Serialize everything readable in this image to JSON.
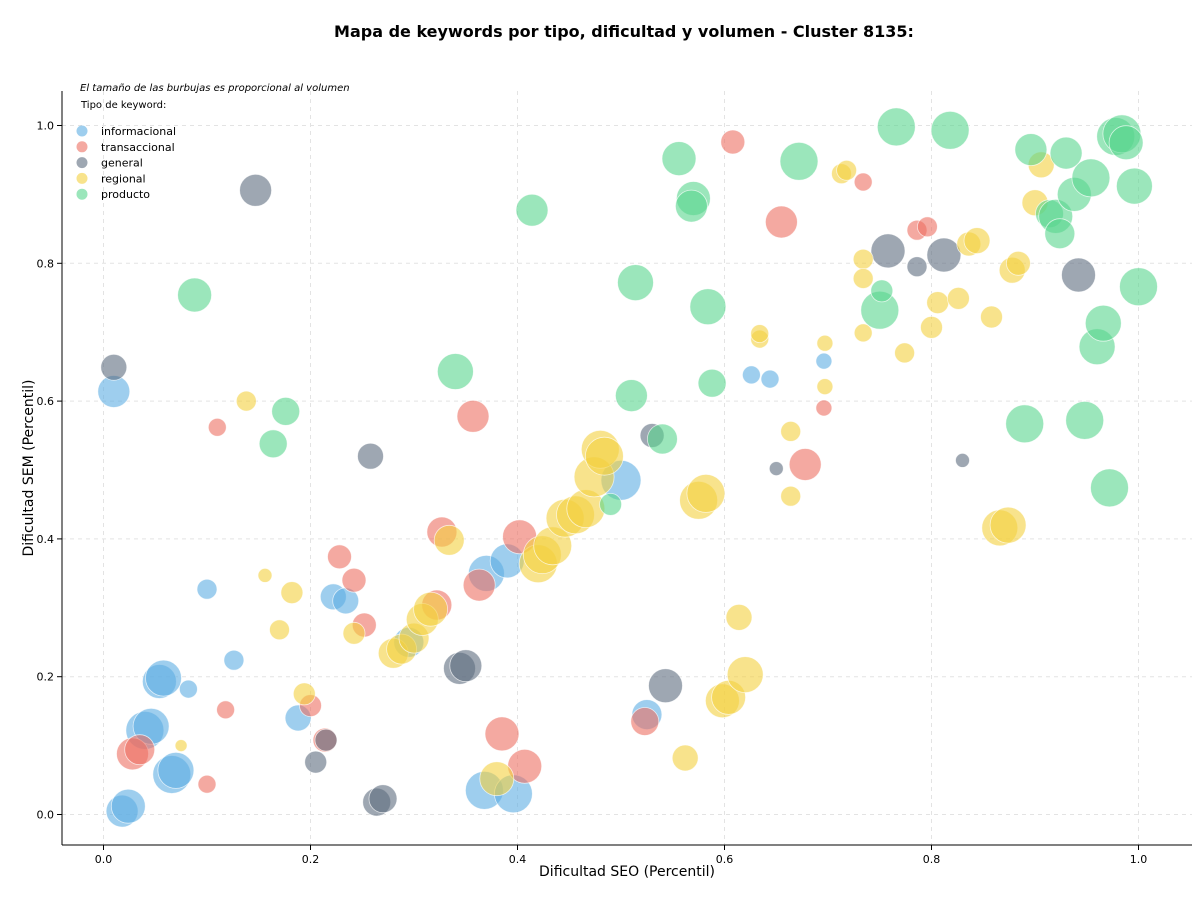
{
  "chart_data": {
    "type": "scatter",
    "title": "Mapa de keywords por tipo, dificultad y volumen - Cluster 8135:",
    "xlabel": "Dificultad SEO (Percentil)",
    "ylabel": "Dificultad SEM (Percentil)",
    "xlim": [
      -0.05,
      1.05
    ],
    "ylim": [
      -0.045,
      1.05
    ],
    "xticks": [
      "0.0",
      "0.2",
      "0.4",
      "0.6",
      "0.8",
      "1.0"
    ],
    "yticks": [
      "0.0",
      "0.2",
      "0.4",
      "0.6",
      "0.8",
      "1.0"
    ],
    "grid": true,
    "annotation": "El tamaño de las burbujas es proporcional al volumen",
    "legend": {
      "title": "Tipo de keyword:",
      "placement": "top-left"
    },
    "series": [
      {
        "name": "informacional",
        "color": "#5dade2",
        "points": [
          [
            0.01,
            0.614,
            16
          ],
          [
            0.018,
            0.005,
            16
          ],
          [
            0.024,
            0.012,
            17
          ],
          [
            0.04,
            0.122,
            19
          ],
          [
            0.046,
            0.128,
            18
          ],
          [
            0.054,
            0.193,
            17
          ],
          [
            0.058,
            0.198,
            18
          ],
          [
            0.066,
            0.058,
            19
          ],
          [
            0.07,
            0.064,
            18
          ],
          [
            0.082,
            0.182,
            9
          ],
          [
            0.1,
            0.327,
            10
          ],
          [
            0.126,
            0.224,
            10
          ],
          [
            0.188,
            0.14,
            13
          ],
          [
            0.222,
            0.316,
            13
          ],
          [
            0.234,
            0.31,
            13
          ],
          [
            0.295,
            0.25,
            15
          ],
          [
            0.37,
            0.35,
            18
          ],
          [
            0.368,
            0.035,
            19
          ],
          [
            0.39,
            0.368,
            17
          ],
          [
            0.396,
            0.03,
            19
          ],
          [
            0.5,
            0.485,
            20
          ],
          [
            0.525,
            0.145,
            15
          ],
          [
            0.626,
            0.638,
            9
          ],
          [
            0.644,
            0.632,
            9
          ],
          [
            0.696,
            0.658,
            8
          ]
        ]
      },
      {
        "name": "transaccional",
        "color": "#ec7063",
        "points": [
          [
            0.028,
            0.088,
            16
          ],
          [
            0.035,
            0.094,
            15
          ],
          [
            0.1,
            0.044,
            9
          ],
          [
            0.11,
            0.562,
            9
          ],
          [
            0.118,
            0.152,
            9
          ],
          [
            0.2,
            0.158,
            11
          ],
          [
            0.214,
            0.108,
            12
          ],
          [
            0.228,
            0.374,
            12
          ],
          [
            0.242,
            0.34,
            12
          ],
          [
            0.252,
            0.275,
            12
          ],
          [
            0.327,
            0.41,
            15
          ],
          [
            0.322,
            0.304,
            15
          ],
          [
            0.357,
            0.578,
            16
          ],
          [
            0.363,
            0.333,
            16
          ],
          [
            0.385,
            0.117,
            17
          ],
          [
            0.402,
            0.403,
            17
          ],
          [
            0.407,
            0.07,
            17
          ],
          [
            0.523,
            0.135,
            14
          ],
          [
            0.608,
            0.976,
            12
          ],
          [
            0.655,
            0.86,
            16
          ],
          [
            0.678,
            0.508,
            16
          ],
          [
            0.696,
            0.59,
            8
          ],
          [
            0.734,
            0.918,
            9
          ],
          [
            0.786,
            0.848,
            10
          ],
          [
            0.796,
            0.853,
            10
          ]
        ]
      },
      {
        "name": "general",
        "color": "#5d6d7e",
        "points": [
          [
            0.01,
            0.649,
            13
          ],
          [
            0.147,
            0.906,
            16
          ],
          [
            0.205,
            0.076,
            11
          ],
          [
            0.215,
            0.108,
            11
          ],
          [
            0.258,
            0.52,
            13
          ],
          [
            0.264,
            0.018,
            14
          ],
          [
            0.27,
            0.023,
            14
          ],
          [
            0.344,
            0.212,
            16
          ],
          [
            0.35,
            0.216,
            16
          ],
          [
            0.53,
            0.55,
            12
          ],
          [
            0.543,
            0.187,
            17
          ],
          [
            0.65,
            0.502,
            7
          ],
          [
            0.758,
            0.818,
            17
          ],
          [
            0.786,
            0.795,
            10
          ],
          [
            0.812,
            0.812,
            17
          ],
          [
            0.83,
            0.514,
            7
          ],
          [
            0.942,
            0.783,
            17
          ]
        ]
      },
      {
        "name": "regional",
        "color": "#f4d03f",
        "points": [
          [
            0.075,
            0.1,
            6
          ],
          [
            0.138,
            0.6,
            10
          ],
          [
            0.156,
            0.347,
            7
          ],
          [
            0.17,
            0.268,
            10
          ],
          [
            0.182,
            0.322,
            11
          ],
          [
            0.194,
            0.175,
            11
          ],
          [
            0.242,
            0.263,
            11
          ],
          [
            0.28,
            0.234,
            15
          ],
          [
            0.288,
            0.24,
            15
          ],
          [
            0.3,
            0.256,
            15
          ],
          [
            0.308,
            0.283,
            16
          ],
          [
            0.316,
            0.298,
            17
          ],
          [
            0.334,
            0.398,
            15
          ],
          [
            0.38,
            0.052,
            17
          ],
          [
            0.42,
            0.364,
            19
          ],
          [
            0.424,
            0.377,
            19
          ],
          [
            0.434,
            0.39,
            19
          ],
          [
            0.446,
            0.43,
            19
          ],
          [
            0.456,
            0.435,
            19
          ],
          [
            0.466,
            0.444,
            19
          ],
          [
            0.474,
            0.49,
            20
          ],
          [
            0.48,
            0.53,
            19
          ],
          [
            0.484,
            0.52,
            19
          ],
          [
            0.562,
            0.082,
            13
          ],
          [
            0.575,
            0.456,
            19
          ],
          [
            0.582,
            0.466,
            19
          ],
          [
            0.598,
            0.165,
            17
          ],
          [
            0.604,
            0.17,
            17
          ],
          [
            0.614,
            0.286,
            13
          ],
          [
            0.62,
            0.203,
            18
          ],
          [
            0.634,
            0.69,
            9
          ],
          [
            0.634,
            0.698,
            9
          ],
          [
            0.664,
            0.556,
            10
          ],
          [
            0.664,
            0.462,
            10
          ],
          [
            0.697,
            0.621,
            8
          ],
          [
            0.697,
            0.684,
            8
          ],
          [
            0.713,
            0.93,
            10
          ],
          [
            0.718,
            0.935,
            10
          ],
          [
            0.734,
            0.806,
            10
          ],
          [
            0.734,
            0.778,
            10
          ],
          [
            0.734,
            0.699,
            9
          ],
          [
            0.774,
            0.67,
            10
          ],
          [
            0.8,
            0.707,
            11
          ],
          [
            0.806,
            0.743,
            11
          ],
          [
            0.826,
            0.749,
            11
          ],
          [
            0.836,
            0.828,
            12
          ],
          [
            0.844,
            0.833,
            13
          ],
          [
            0.858,
            0.722,
            11
          ],
          [
            0.866,
            0.416,
            18
          ],
          [
            0.874,
            0.42,
            18
          ],
          [
            0.878,
            0.79,
            13
          ],
          [
            0.884,
            0.8,
            12
          ],
          [
            0.9,
            0.888,
            13
          ],
          [
            0.906,
            0.943,
            13
          ]
        ]
      },
      {
        "name": "producto",
        "color": "#58d68d",
        "points": [
          [
            0.088,
            0.754,
            17
          ],
          [
            0.164,
            0.538,
            14
          ],
          [
            0.176,
            0.585,
            14
          ],
          [
            0.34,
            0.643,
            18
          ],
          [
            0.414,
            0.877,
            16
          ],
          [
            0.49,
            0.45,
            11
          ],
          [
            0.51,
            0.608,
            16
          ],
          [
            0.514,
            0.772,
            18
          ],
          [
            0.54,
            0.545,
            15
          ],
          [
            0.556,
            0.952,
            17
          ],
          [
            0.57,
            0.894,
            17
          ],
          [
            0.568,
            0.883,
            16
          ],
          [
            0.584,
            0.737,
            18
          ],
          [
            0.588,
            0.626,
            14
          ],
          [
            0.672,
            0.948,
            19
          ],
          [
            0.75,
            0.732,
            19
          ],
          [
            0.752,
            0.76,
            11
          ],
          [
            0.766,
            0.998,
            19
          ],
          [
            0.818,
            0.993,
            19
          ],
          [
            0.89,
            0.567,
            19
          ],
          [
            0.896,
            0.965,
            16
          ],
          [
            0.914,
            0.872,
            14
          ],
          [
            0.92,
            0.868,
            17
          ],
          [
            0.924,
            0.843,
            15
          ],
          [
            0.93,
            0.96,
            16
          ],
          [
            0.938,
            0.9,
            17
          ],
          [
            0.948,
            0.572,
            19
          ],
          [
            0.954,
            0.924,
            19
          ],
          [
            0.96,
            0.679,
            18
          ],
          [
            0.966,
            0.713,
            18
          ],
          [
            0.972,
            0.474,
            19
          ],
          [
            0.978,
            0.984,
            19
          ],
          [
            0.984,
            0.988,
            19
          ],
          [
            0.988,
            0.975,
            17
          ],
          [
            0.996,
            0.912,
            18
          ],
          [
            1.0,
            0.766,
            19
          ]
        ]
      }
    ]
  }
}
